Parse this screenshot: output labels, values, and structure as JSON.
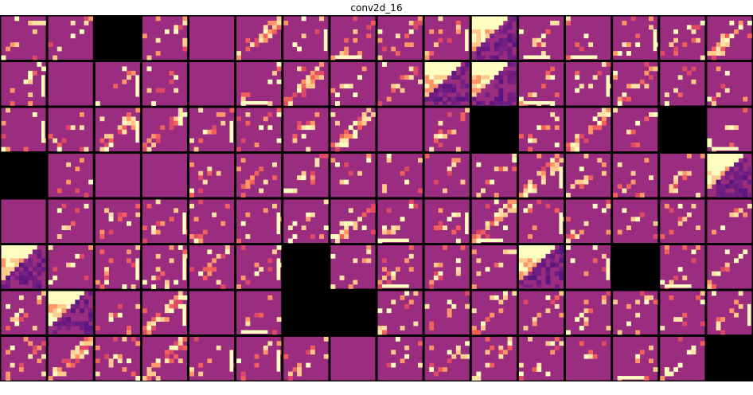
{
  "chart_data": {
    "type": "heatmap",
    "title": "conv2d_16",
    "rows": 8,
    "cols": 16,
    "colormap": "magma",
    "background_color": "#9b2d80",
    "empty_color": "#000000",
    "separator_color": "#000000",
    "empty_cells": [
      [
        0,
        2
      ],
      [
        2,
        10
      ],
      [
        2,
        14
      ],
      [
        3,
        0
      ],
      [
        5,
        6
      ],
      [
        5,
        13
      ],
      [
        6,
        6
      ],
      [
        6,
        7
      ],
      [
        7,
        15
      ]
    ],
    "wedge_cells": [
      [
        0,
        10
      ],
      [
        1,
        9
      ],
      [
        1,
        10
      ],
      [
        3,
        15
      ],
      [
        5,
        0
      ],
      [
        5,
        11
      ],
      [
        6,
        1
      ]
    ],
    "dense_cells": [
      [
        0,
        5
      ],
      [
        0,
        15
      ],
      [
        1,
        6
      ],
      [
        2,
        2
      ],
      [
        2,
        3
      ],
      [
        2,
        7
      ],
      [
        2,
        12
      ],
      [
        3,
        11
      ],
      [
        4,
        7
      ],
      [
        4,
        10
      ],
      [
        6,
        3
      ],
      [
        7,
        1
      ],
      [
        7,
        3
      ]
    ],
    "uniform_cells": [
      [
        0,
        4
      ],
      [
        1,
        1
      ],
      [
        1,
        4
      ],
      [
        2,
        8
      ],
      [
        3,
        2
      ],
      [
        3,
        3
      ],
      [
        4,
        0
      ],
      [
        6,
        4
      ],
      [
        7,
        7
      ]
    ]
  }
}
